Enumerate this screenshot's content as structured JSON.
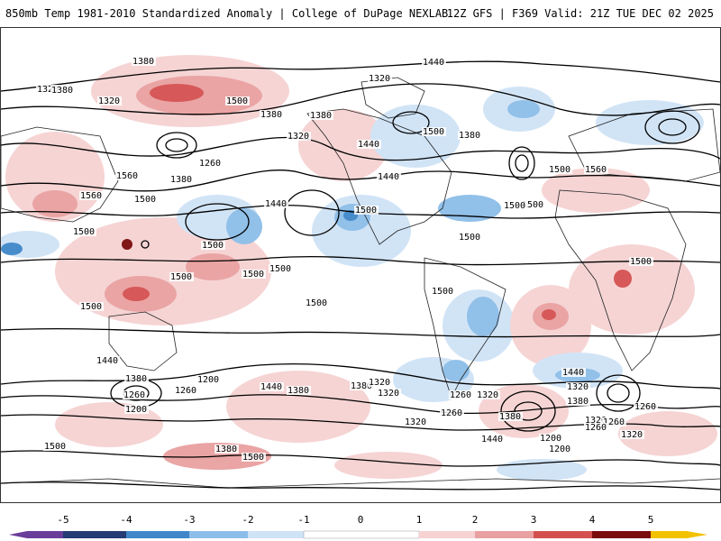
{
  "header": {
    "title": "850mb Temp 1981-2010 Standardized Anomaly | College of DuPage NEXLAB",
    "run_info": "12Z GFS | F369 Valid: 21Z TUE DEC 02 2025"
  },
  "map": {
    "contour_labels": [
      "1380",
      "1320",
      "1380",
      "1320",
      "1500",
      "1380",
      "1320",
      "1440",
      "1380",
      "1320",
      "1380",
      "1440",
      "1500",
      "1260",
      "1380",
      "1560",
      "1500",
      "1440",
      "1560",
      "1500",
      "1560",
      "1440",
      "1500",
      "1500",
      "1500",
      "1500",
      "1500",
      "1500",
      "1500",
      "1500",
      "1500",
      "1500",
      "1500",
      "1500",
      "1500",
      "1440",
      "1440",
      "1380",
      "1380",
      "1200",
      "1320",
      "1260",
      "1320",
      "1260",
      "1320",
      "1260",
      "1380",
      "1440",
      "1380",
      "1260",
      "1320",
      "1200",
      "1260",
      "1380",
      "1320",
      "1200",
      "1200",
      "1260",
      "1320",
      "1380",
      "1500",
      "1440",
      "1260",
      "1320",
      "1500"
    ],
    "colors": {
      "neg5": "#6a3d9a",
      "neg4": "#243b73",
      "neg3": "#3f87c9",
      "neg2": "#8cbde8",
      "neg1": "#cfe3f6",
      "pos1": "#f6d2d2",
      "pos2": "#e9a0a0",
      "pos3": "#d45050",
      "pos4": "#b81c1c",
      "pos5": "#7a0c0c",
      "top": "#f2c200",
      "contour": "#000000",
      "coast": "#222222"
    }
  },
  "colorbar": {
    "ticks": [
      "-5",
      "-4",
      "-3",
      "-2",
      "-1",
      "0",
      "1",
      "2",
      "3",
      "4",
      "5"
    ]
  }
}
